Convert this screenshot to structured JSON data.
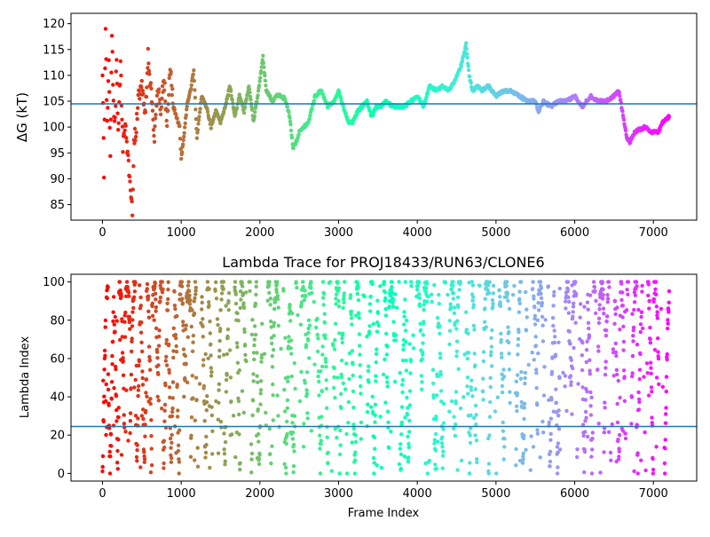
{
  "chart_data": [
    {
      "type": "scatter",
      "title": "",
      "xlabel": "",
      "ylabel": "ΔG (kT)",
      "xlim": [
        -400,
        7550
      ],
      "ylim": [
        82,
        122
      ],
      "xticks": [
        0,
        1000,
        2000,
        3000,
        4000,
        5000,
        6000,
        7000
      ],
      "xtick_labels": [
        "0",
        "1000",
        "2000",
        "3000",
        "4000",
        "5000",
        "6000",
        "7000"
      ],
      "yticks": [
        85,
        90,
        95,
        100,
        105,
        110,
        115,
        120
      ],
      "ytick_labels": [
        "85",
        "90",
        "95",
        "100",
        "105",
        "110",
        "115",
        "120"
      ],
      "hline": 104.5,
      "hline_color": "#1f77b4",
      "colormap": "rainbow (frame index: red → violet)",
      "grid": false,
      "series": [
        {
          "x": [
            0,
            20,
            40,
            60,
            80,
            100,
            120,
            140,
            160,
            180,
            200,
            230,
            260,
            290,
            320,
            350,
            380,
            400,
            430,
            460,
            500,
            540,
            580,
            620,
            660,
            700,
            740,
            780,
            820,
            860,
            900,
            940,
            980,
            1000,
            1040,
            1080,
            1120,
            1160,
            1200,
            1260,
            1320,
            1380,
            1440,
            1500,
            1560,
            1620,
            1680,
            1740,
            1800,
            1860,
            1920,
            1980,
            2040,
            2080,
            2120,
            2160,
            2200,
            2260,
            2320,
            2380,
            2420,
            2460,
            2500,
            2560,
            2620,
            2700,
            2780,
            2860,
            2940,
            3000,
            3060,
            3120,
            3180,
            3240,
            3300,
            3360,
            3420,
            3480,
            3540,
            3600,
            3680,
            3760,
            3840,
            3920,
            4000,
            4080,
            4160,
            4240,
            4320,
            4400,
            4480,
            4560,
            4620,
            4660,
            4700,
            4760,
            4820,
            4900,
            5000,
            5100,
            5200,
            5300,
            5400,
            5500,
            5540,
            5600,
            5700,
            5800,
            5900,
            6000,
            6100,
            6200,
            6300,
            6400,
            6500,
            6560,
            6620,
            6660,
            6700,
            6760,
            6820,
            6900,
            6980,
            7060,
            7120,
            7200
          ],
          "y": [
            110,
            90,
            120,
            100,
            112,
            95,
            118,
            104,
            101,
            114,
            99,
            112,
            96,
            102,
            94,
            90,
            83,
            97,
            100,
            106,
            108,
            102,
            114,
            106,
            98,
            108,
            103,
            110,
            100,
            112,
            104,
            102,
            100,
            94,
            99,
            105,
            107,
            111,
            98,
            106,
            104,
            100,
            103,
            101,
            104,
            108,
            102,
            106,
            103,
            108,
            101,
            107,
            113.5,
            107,
            106,
            105,
            106,
            106,
            105.5,
            102,
            96,
            97,
            99,
            100,
            101,
            106,
            107,
            104,
            105,
            107,
            104,
            101,
            101,
            103,
            104,
            105,
            102,
            104,
            104,
            105,
            104,
            104,
            104,
            105,
            106,
            104,
            108,
            107,
            108,
            107,
            109,
            112,
            116,
            110,
            107,
            108,
            107,
            108,
            106,
            107,
            107,
            106,
            105,
            105,
            103,
            105,
            104,
            105,
            105,
            106,
            104,
            106,
            105,
            105,
            106,
            107,
            102,
            98,
            97,
            99,
            99.5,
            100,
            99,
            99,
            101,
            102
          ]
        }
      ]
    },
    {
      "type": "scatter",
      "title": "Lambda Trace for PROJ18433/RUN63/CLONE6",
      "xlabel": "Frame Index",
      "ylabel": "Lambda Index",
      "xlim": [
        -400,
        7550
      ],
      "ylim": [
        -4,
        104
      ],
      "xticks": [
        0,
        1000,
        2000,
        3000,
        4000,
        5000,
        6000,
        7000
      ],
      "xtick_labels": [
        "0",
        "1000",
        "2000",
        "3000",
        "4000",
        "5000",
        "6000",
        "7000"
      ],
      "yticks": [
        0,
        20,
        40,
        60,
        80,
        100
      ],
      "ytick_labels": [
        "0",
        "20",
        "40",
        "60",
        "80",
        "100"
      ],
      "hline": 24.5,
      "hline_color": "#1f77b4",
      "colormap": "rainbow (frame index: red → violet)",
      "grid": false,
      "sampling": "dense vertical bands of points spanning lambda 0–100 across frames 0–7200"
    }
  ]
}
